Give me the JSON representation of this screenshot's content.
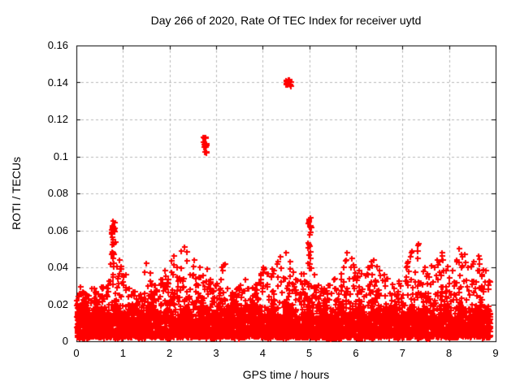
{
  "chart_data": {
    "type": "scatter",
    "title": "Day 266 of 2020, Rate Of TEC Index for receiver uytd",
    "xlabel": "GPS time / hours",
    "ylabel": "ROTI / TECUs",
    "xlim": [
      0,
      9
    ],
    "ylim": [
      0,
      0.16
    ],
    "xtick_labels": [
      "0",
      "1",
      "2",
      "3",
      "4",
      "5",
      "6",
      "7",
      "8",
      "9"
    ],
    "ytick_labels": [
      "0",
      "0.02",
      "0.04",
      "0.06",
      "0.08",
      "0.1",
      "0.12",
      "0.14",
      "0.16"
    ],
    "grid": "dashed",
    "legend": "none",
    "marker": {
      "glyph": "plus",
      "color": "#ff0000",
      "size": 7,
      "thickness": 2
    },
    "grid_color": "#b8b8b8",
    "axis_color": "#000000",
    "background_color": "#ffffff",
    "x_data_range": [
      0,
      8.87
    ],
    "band": {
      "description": "dense noise band of + markers hugging the x-axis",
      "bin_width": 0.1,
      "floor": 0.002,
      "core_top_typical": 0.015,
      "points_per_bin": 60,
      "seed": 2020266,
      "envelope": [
        0.03,
        0.027,
        0.025,
        0.029,
        0.027,
        0.03,
        0.033,
        0.048,
        0.055,
        0.045,
        0.037,
        0.029,
        0.027,
        0.026,
        0.038,
        0.043,
        0.031,
        0.028,
        0.034,
        0.039,
        0.047,
        0.041,
        0.05,
        0.052,
        0.037,
        0.045,
        0.041,
        0.036,
        0.04,
        0.031,
        0.034,
        0.042,
        0.029,
        0.027,
        0.029,
        0.031,
        0.034,
        0.029,
        0.031,
        0.037,
        0.041,
        0.037,
        0.039,
        0.047,
        0.049,
        0.044,
        0.038,
        0.034,
        0.037,
        0.043,
        0.046,
        0.037,
        0.031,
        0.029,
        0.031,
        0.034,
        0.037,
        0.045,
        0.049,
        0.046,
        0.039,
        0.037,
        0.041,
        0.044,
        0.041,
        0.039,
        0.037,
        0.031,
        0.029,
        0.033,
        0.043,
        0.05,
        0.038,
        0.054,
        0.041,
        0.037,
        0.041,
        0.044,
        0.049,
        0.041,
        0.039,
        0.044,
        0.051,
        0.048,
        0.041,
        0.044,
        0.047,
        0.039,
        0.033
      ]
    },
    "outlier_clusters": [
      {
        "x0": 0.74,
        "x1": 0.83,
        "y0": 0.056,
        "y1": 0.066,
        "n": 18
      },
      {
        "x0": 0.76,
        "x1": 0.81,
        "y0": 0.043,
        "y1": 0.056,
        "n": 7
      },
      {
        "x0": 2.71,
        "x1": 2.8,
        "y0": 0.1045,
        "y1": 0.1105,
        "n": 14
      },
      {
        "x0": 2.75,
        "x1": 2.79,
        "y0": 0.1015,
        "y1": 0.104,
        "n": 4
      },
      {
        "x0": 4.49,
        "x1": 4.62,
        "y0": 0.1375,
        "y1": 0.1415,
        "n": 16
      },
      {
        "x0": 4.96,
        "x1": 5.04,
        "y0": 0.06,
        "y1": 0.0675,
        "n": 10
      },
      {
        "x0": 4.97,
        "x1": 5.03,
        "y0": 0.045,
        "y1": 0.06,
        "n": 8
      }
    ]
  }
}
